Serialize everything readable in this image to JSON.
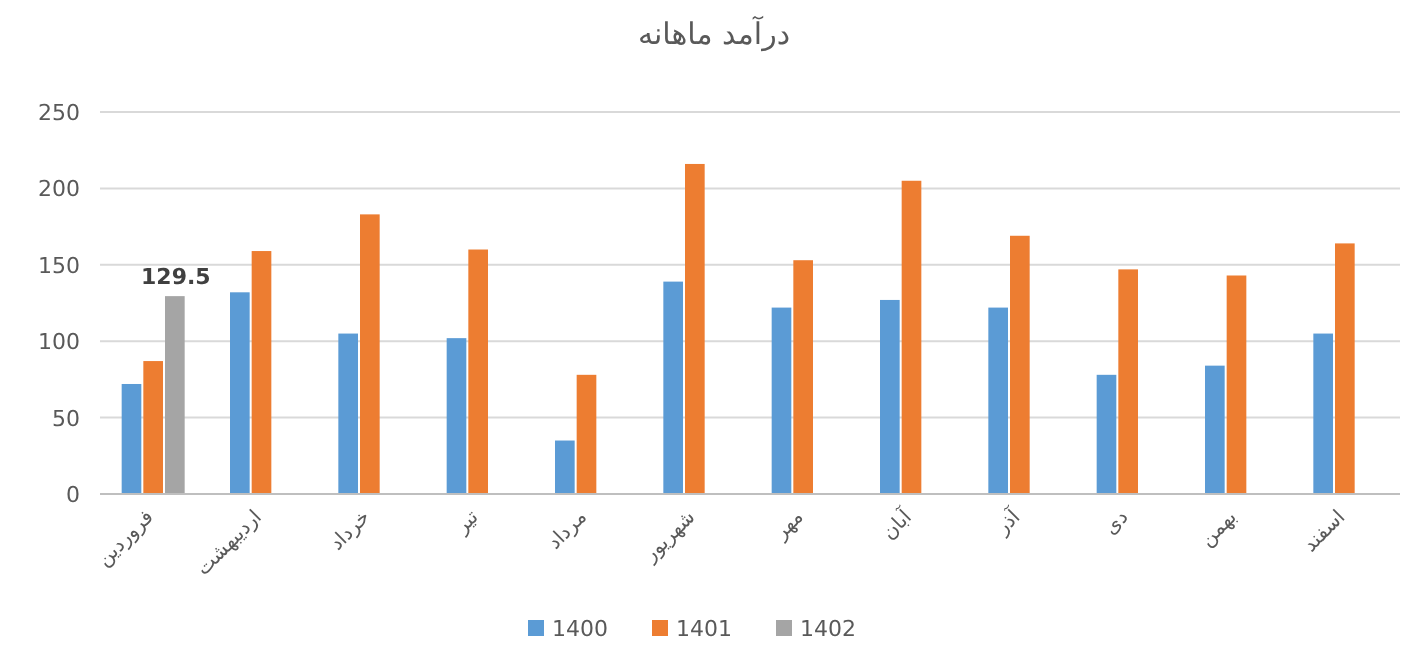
{
  "chart_data": {
    "type": "bar",
    "title": "درآمد ماهانه",
    "categories": [
      "فروردین",
      "اردیبهشت",
      "خرداد",
      "تیر",
      "مرداد",
      "شهریور",
      "مهر",
      "آبان",
      "آذر",
      "دی",
      "بهمن",
      "اسفند"
    ],
    "series": [
      {
        "name": "1400",
        "color": "#5b9bd5",
        "values": [
          72,
          132,
          105,
          102,
          35,
          139,
          122,
          127,
          122,
          78,
          84,
          105
        ]
      },
      {
        "name": "1401",
        "color": "#ed7d31",
        "values": [
          87,
          159,
          183,
          160,
          78,
          216,
          153,
          205,
          169,
          147,
          143,
          164
        ]
      },
      {
        "name": "1402",
        "color": "#a5a5a5",
        "values": [
          129.5,
          null,
          null,
          null,
          null,
          null,
          null,
          null,
          null,
          null,
          null,
          null
        ],
        "value_labels": [
          "129.5",
          null,
          null,
          null,
          null,
          null,
          null,
          null,
          null,
          null,
          null,
          null
        ]
      }
    ],
    "ylim": [
      0,
      250
    ],
    "yticks": [
      0,
      50,
      100,
      150,
      200,
      250
    ],
    "grid": "y",
    "legend": "bottom"
  }
}
